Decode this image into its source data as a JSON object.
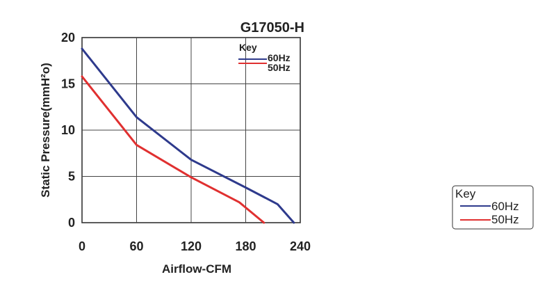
{
  "chart_data": {
    "type": "line",
    "title": "G17050-H",
    "xlabel": "Airflow-CFM",
    "ylabel": "Static Pressure(mmH²o)",
    "xlim": [
      0,
      240
    ],
    "ylim": [
      0,
      20
    ],
    "xticks": [
      "0",
      "60",
      "120",
      "180",
      "240"
    ],
    "yticks": [
      "0",
      "5",
      "10",
      "15",
      "20"
    ],
    "grid": true,
    "legend_title": "Key",
    "legend_placement": "top-right",
    "series": [
      {
        "name": "60Hz",
        "color": "#2e3a8c",
        "x": [
          0,
          60,
          120,
          180,
          215,
          233
        ],
        "y": [
          18.8,
          11.4,
          6.8,
          3.8,
          2.0,
          0
        ]
      },
      {
        "name": "50Hz",
        "color": "#e03030",
        "x": [
          0,
          60,
          120,
          173,
          200
        ],
        "y": [
          15.8,
          8.4,
          4.9,
          2.2,
          0
        ]
      }
    ]
  }
}
